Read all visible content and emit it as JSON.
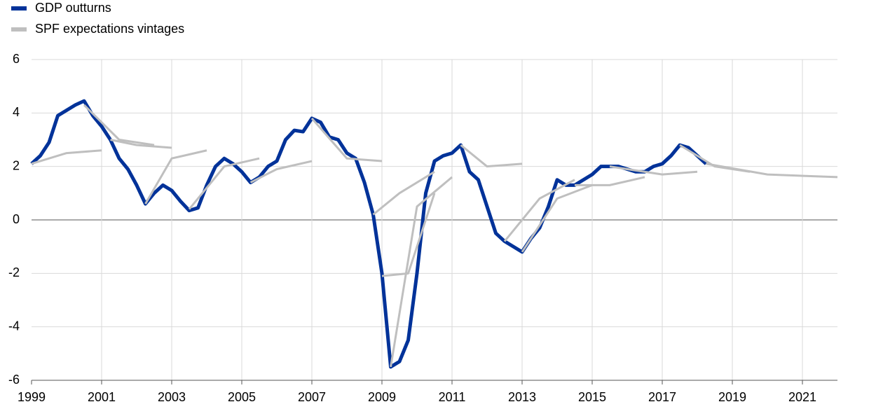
{
  "chart_data": {
    "type": "line",
    "xlim": [
      1999,
      2022
    ],
    "xticks": [
      1999,
      2001,
      2003,
      2005,
      2007,
      2009,
      2011,
      2013,
      2015,
      2017,
      2019,
      2021
    ],
    "ylim": [
      -6,
      6
    ],
    "yticks": [
      -6,
      -4,
      -2,
      0,
      2,
      4,
      6
    ],
    "grid": true,
    "series": [
      {
        "name": "GDP outturns",
        "color": "#003299",
        "x": [
          1999,
          1999.25,
          1999.5,
          1999.75,
          2000,
          2000.25,
          2000.5,
          2000.75,
          2001,
          2001.25,
          2001.5,
          2001.75,
          2002,
          2002.25,
          2002.5,
          2002.75,
          2003,
          2003.25,
          2003.5,
          2003.75,
          2004,
          2004.25,
          2004.5,
          2004.75,
          2005,
          2005.25,
          2005.5,
          2005.75,
          2006,
          2006.25,
          2006.5,
          2006.75,
          2007,
          2007.25,
          2007.5,
          2007.75,
          2008,
          2008.25,
          2008.5,
          2008.75,
          2009,
          2009.25,
          2009.5,
          2009.75,
          2010,
          2010.25,
          2010.5,
          2010.75,
          2011,
          2011.25,
          2011.5,
          2011.75,
          2012,
          2012.25,
          2012.5,
          2012.75,
          2013,
          2013.25,
          2013.5,
          2013.75,
          2014,
          2014.25,
          2014.5,
          2014.75,
          2015,
          2015.25,
          2015.5,
          2015.75,
          2016,
          2016.25,
          2016.5,
          2016.75,
          2017,
          2017.25,
          2017.5,
          2017.75,
          2018,
          2018.25
        ],
        "values": [
          2.1,
          2.4,
          2.9,
          3.9,
          4.1,
          4.3,
          4.45,
          3.9,
          3.5,
          3.0,
          2.3,
          1.9,
          1.3,
          0.6,
          1.0,
          1.3,
          1.1,
          0.7,
          0.35,
          0.45,
          1.3,
          2.0,
          2.3,
          2.1,
          1.8,
          1.4,
          1.6,
          2.0,
          2.2,
          3.0,
          3.35,
          3.3,
          3.8,
          3.65,
          3.1,
          3.0,
          2.5,
          2.3,
          1.4,
          0.2,
          -2.0,
          -5.5,
          -5.3,
          -4.5,
          -2.0,
          1.0,
          2.2,
          2.4,
          2.5,
          2.8,
          1.8,
          1.5,
          0.5,
          -0.5,
          -0.8,
          -1.0,
          -1.2,
          -0.7,
          -0.3,
          0.5,
          1.5,
          1.3,
          1.3,
          1.5,
          1.7,
          2.0,
          2.0,
          2.0,
          1.9,
          1.8,
          1.8,
          2.0,
          2.1,
          2.4,
          2.8,
          2.7,
          2.4,
          2.1
        ]
      },
      {
        "name": "SPF expectations vintages",
        "color": "#bfbfbf",
        "lines": [
          {
            "x": [
              1999,
              2000,
              2001
            ],
            "values": [
              2.1,
              2.5,
              2.6
            ]
          },
          {
            "x": [
              2000.5,
              2001.5,
              2002.5
            ],
            "values": [
              4.3,
              3.0,
              2.8
            ]
          },
          {
            "x": [
              2001.25,
              2002,
              2003
            ],
            "values": [
              3.0,
              2.8,
              2.7
            ]
          },
          {
            "x": [
              2002.25,
              2003,
              2004
            ],
            "values": [
              0.6,
              2.3,
              2.6
            ]
          },
          {
            "x": [
              2003.5,
              2004.5,
              2005.5
            ],
            "values": [
              0.4,
              2.0,
              2.3
            ]
          },
          {
            "x": [
              2005.25,
              2006,
              2007
            ],
            "values": [
              1.4,
              1.9,
              2.2
            ]
          },
          {
            "x": [
              2007,
              2008,
              2009
            ],
            "values": [
              3.8,
              2.3,
              2.2
            ]
          },
          {
            "x": [
              2008.75,
              2009.5,
              2010.5
            ],
            "values": [
              0.2,
              1.0,
              1.8
            ]
          },
          {
            "x": [
              2009,
              2009.75,
              2010.5
            ],
            "values": [
              -2.1,
              -2.0,
              1.0
            ]
          },
          {
            "x": [
              2009.25,
              2010,
              2011
            ],
            "values": [
              -5.5,
              0.5,
              1.6
            ]
          },
          {
            "x": [
              2011.25,
              2012,
              2013
            ],
            "values": [
              2.8,
              2.0,
              2.1
            ]
          },
          {
            "x": [
              2012.5,
              2013.5,
              2014.5
            ],
            "values": [
              -0.8,
              0.8,
              1.5
            ]
          },
          {
            "x": [
              2013,
              2014,
              2015
            ],
            "values": [
              -1.2,
              0.8,
              1.3
            ]
          },
          {
            "x": [
              2014.5,
              2015.5,
              2016.5
            ],
            "values": [
              1.3,
              1.3,
              1.6
            ]
          },
          {
            "x": [
              2015.5,
              2017,
              2018
            ],
            "values": [
              2.0,
              1.7,
              1.8
            ]
          },
          {
            "x": [
              2017.5,
              2018.5,
              2019.5
            ],
            "values": [
              2.8,
              2.0,
              1.8
            ]
          },
          {
            "x": [
              2018.25,
              2020,
              2022
            ],
            "values": [
              2.1,
              1.7,
              1.6
            ]
          }
        ]
      }
    ]
  }
}
